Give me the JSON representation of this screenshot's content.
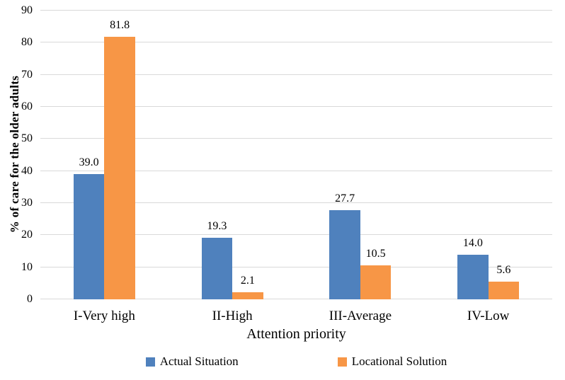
{
  "chart_data": {
    "type": "bar",
    "title": "",
    "categories": [
      "I-Very high",
      "II-High",
      "III-Average",
      "IV-Low"
    ],
    "series": [
      {
        "name": "Actual Situation",
        "color": "#4F81BD",
        "values": [
          39.0,
          19.3,
          27.7,
          14.0
        ],
        "labels": [
          "39.0",
          "19.3",
          "27.7",
          "14.0"
        ]
      },
      {
        "name": "Locational Solution",
        "color": "#F79646",
        "values": [
          81.8,
          2.1,
          10.5,
          5.6
        ],
        "labels": [
          "81.8",
          "2.1",
          "10.5",
          "5.6"
        ]
      }
    ],
    "xlabel": "Attention priority",
    "ylabel": "% of care for the older adults",
    "ylim": [
      0,
      90
    ],
    "yticks": [
      0,
      10,
      20,
      30,
      40,
      50,
      60,
      70,
      80,
      90
    ],
    "grid": "horizontal",
    "gridline_color": "#D9D9D9",
    "legend_position": "bottom"
  }
}
